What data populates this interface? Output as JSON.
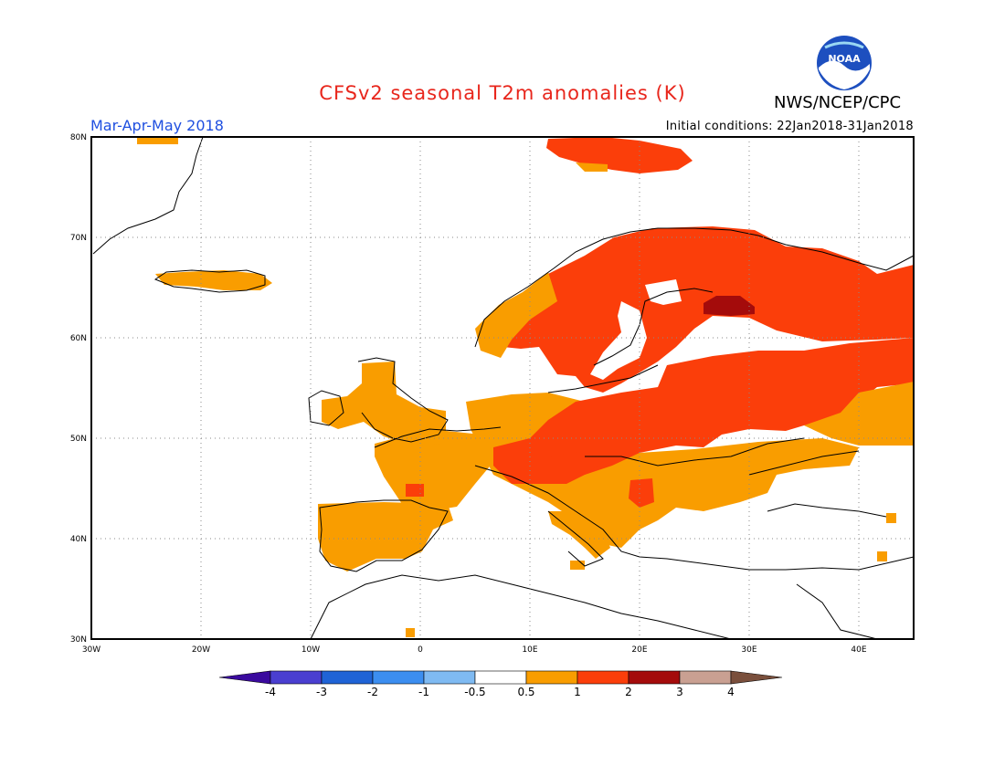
{
  "header": {
    "title": "CFSv2 seasonal T2m anomalies (K)",
    "season": "Mar-Apr-May 2018",
    "initial_conditions": "Initial conditions: 22Jan2018-31Jan2018",
    "agency": "NWS/NCEP/CPC",
    "logo_icon": "noaa-logo-icon"
  },
  "axes": {
    "lon_ticks": [
      "30W",
      "20W",
      "10W",
      "0",
      "10E",
      "20E",
      "30E",
      "40E"
    ],
    "lat_ticks": [
      "30N",
      "40N",
      "50N",
      "60N",
      "70N",
      "80N"
    ],
    "lon_range": [
      -30,
      45
    ],
    "lat_range": [
      30,
      80
    ],
    "grid": true
  },
  "colorbar": {
    "labels": [
      "-4",
      "-3",
      "-2",
      "-1",
      "-0.5",
      "0.5",
      "1",
      "2",
      "3",
      "4"
    ],
    "colors": [
      "#3a0a9e",
      "#4a3fd0",
      "#1f63d6",
      "#3c8ef0",
      "#7fbaf2",
      "#ffffff",
      "#f99d00",
      "#fb3e0a",
      "#a40b0b",
      "#c9a092",
      "#7a4f3c"
    ]
  },
  "colors": {
    "anomaly_0_5_to_1": "#f99d00",
    "anomaly_1_to_2": "#fb3e0a",
    "anomaly_2_to_3": "#a40b0b"
  }
}
